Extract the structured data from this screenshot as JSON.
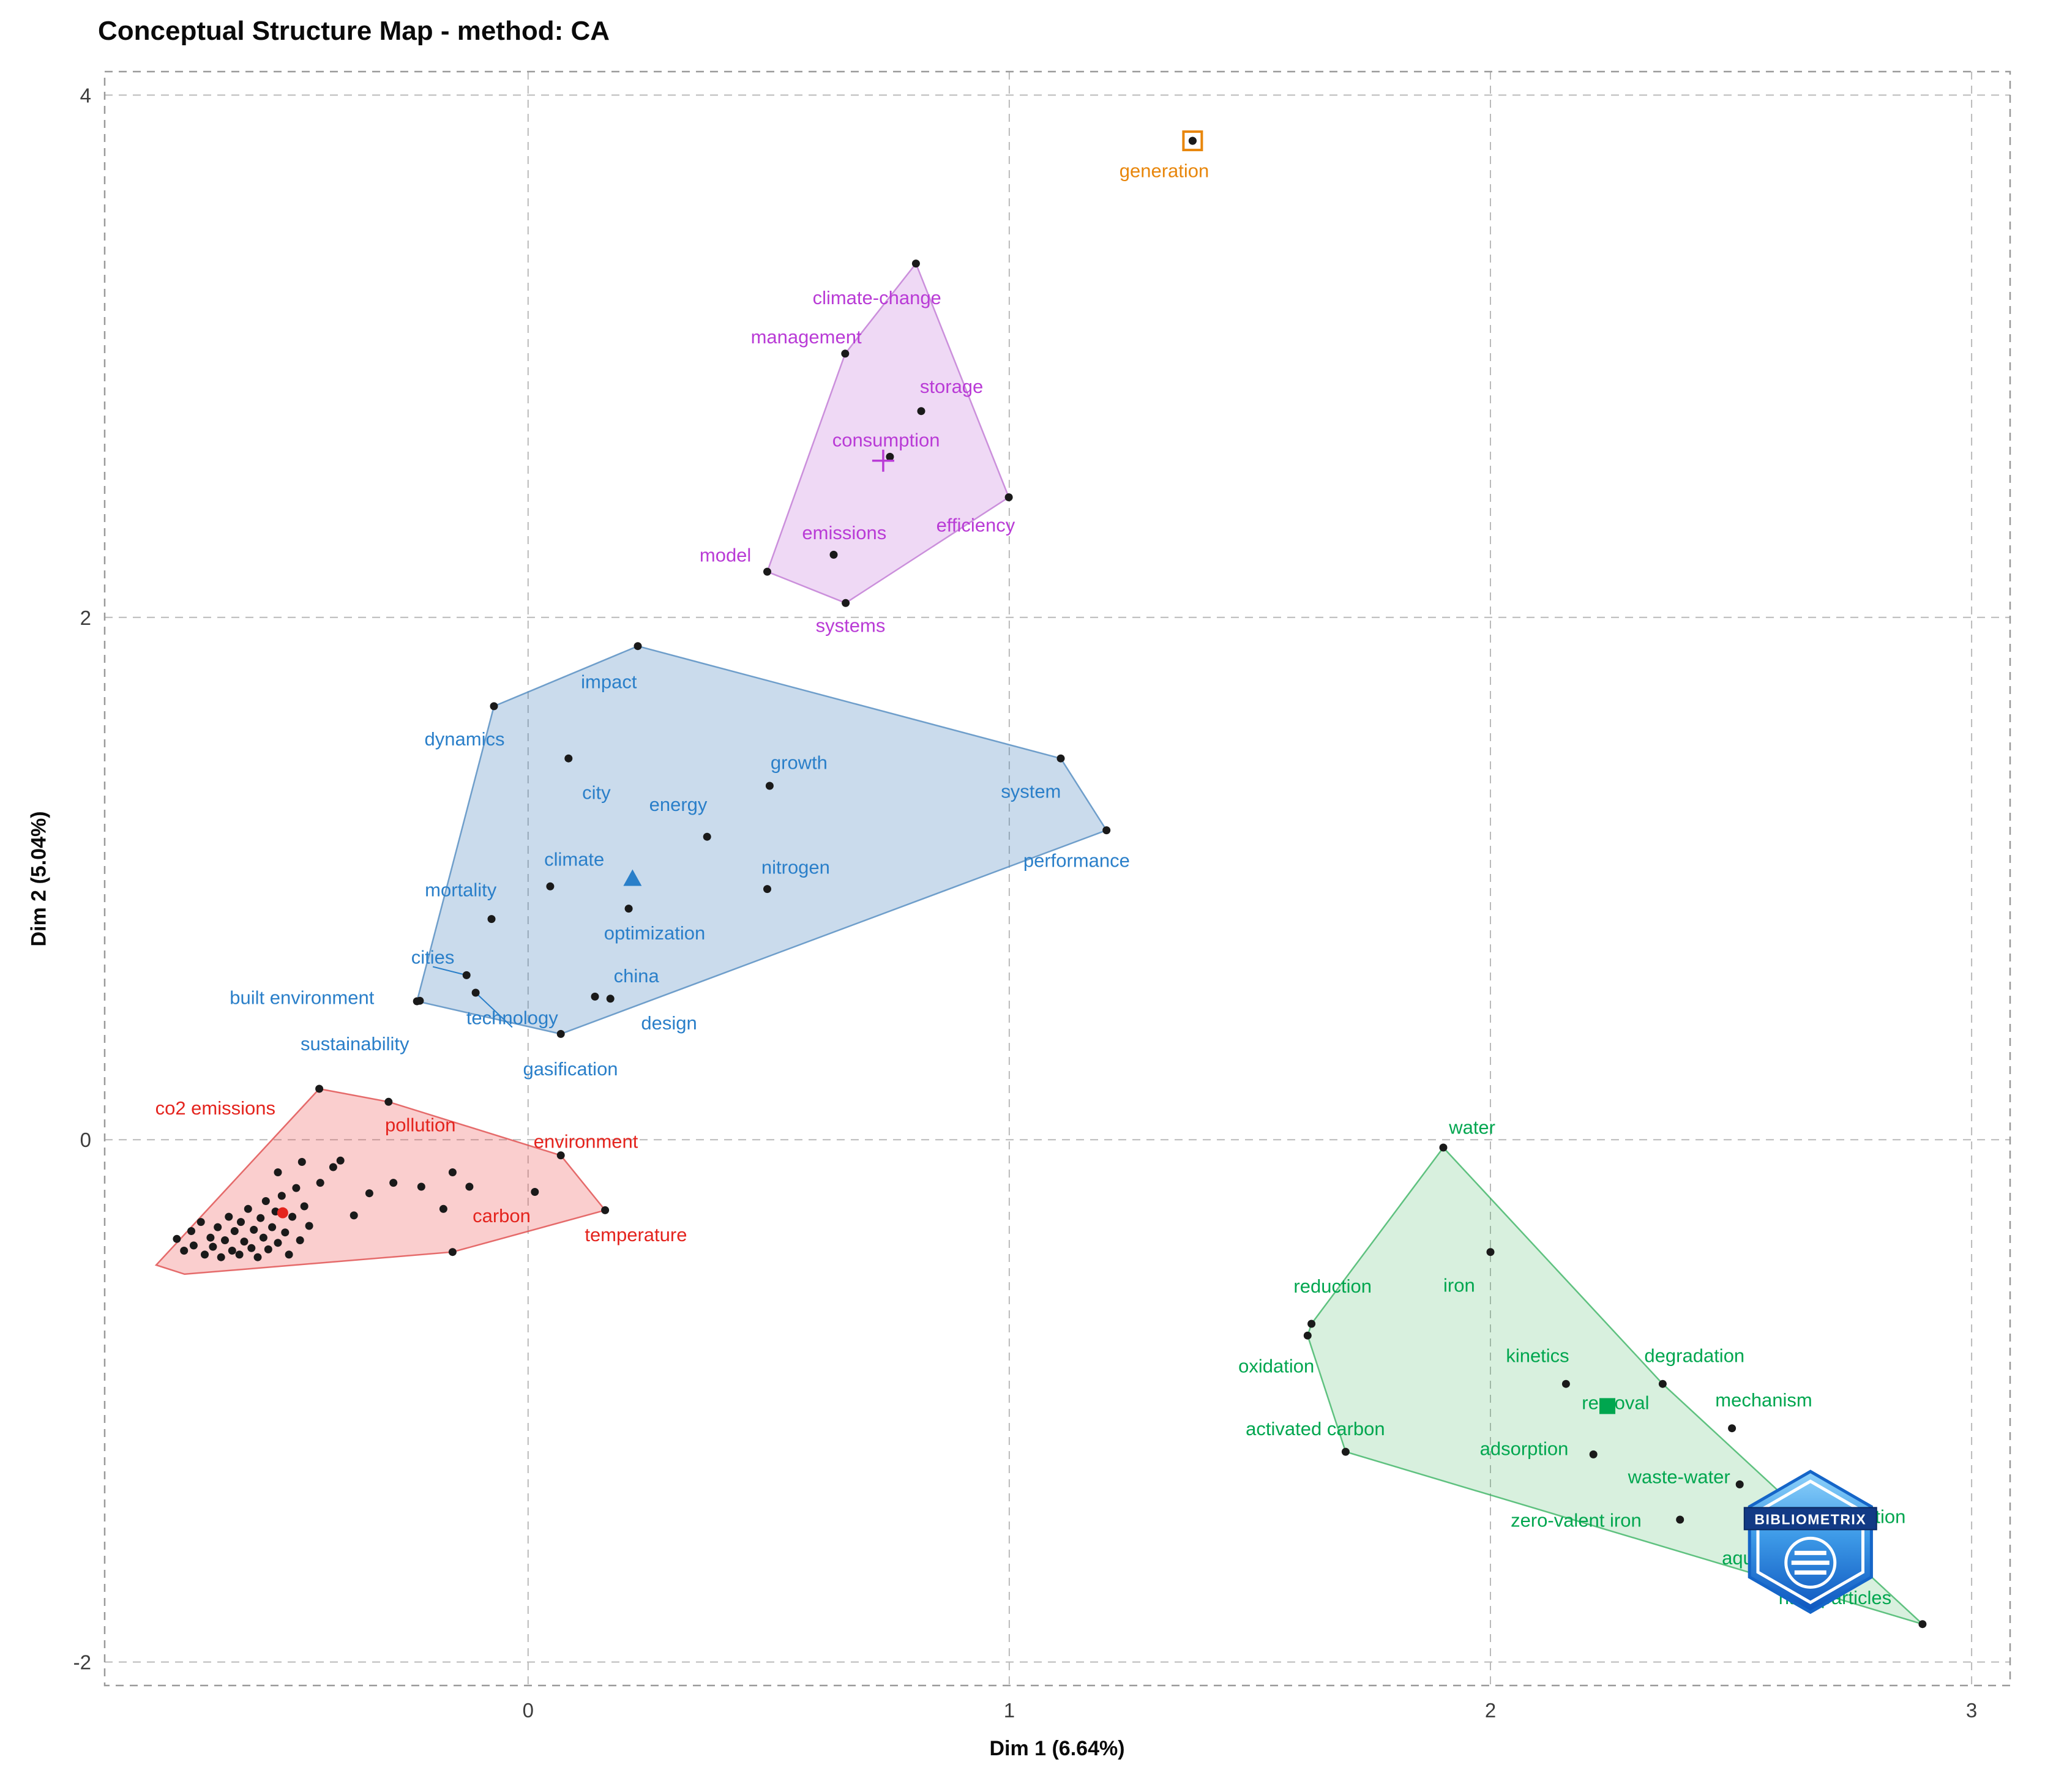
{
  "chart_data": {
    "type": "scatter",
    "title": "Conceptual Structure Map - method: CA",
    "xlabel": "Dim 1 (6.64%)",
    "ylabel": "Dim 2 (5.04%)",
    "xlim": [
      -0.88,
      3.08
    ],
    "ylim": [
      -2.09,
      4.09
    ],
    "x_ticks": [
      0,
      1,
      2,
      3
    ],
    "y_ticks": [
      -2,
      0,
      2,
      4
    ],
    "grid": "dashed",
    "point_color": "#1a1a1a",
    "watermark_text": "BIBLIOMETRIX",
    "clusters": [
      {
        "name": "orange",
        "label_color": "#E8860B",
        "hull_fill": "none",
        "hull_stroke": "none",
        "marker": "square-dot",
        "centroid": [
          1.381,
          3.825
        ],
        "hull": [],
        "terms": [
          {
            "label": "generation",
            "x": 1.381,
            "y": 3.825,
            "lx": 1.322,
            "ly": 3.712
          }
        ]
      },
      {
        "name": "purple",
        "label_color": "#B93BD6",
        "hull_fill": "rgba(196,120,220,0.28)",
        "hull_stroke": "rgba(195,127,214,0.85)",
        "marker": "plus",
        "centroid": [
          0.738,
          2.6
        ],
        "hull": [
          [
            0.806,
            3.355
          ],
          [
            0.999,
            2.46
          ],
          [
            0.66,
            2.055
          ],
          [
            0.497,
            2.175
          ],
          [
            0.659,
            3.01
          ]
        ],
        "terms": [
          {
            "label": "climate-change",
            "x": 0.806,
            "y": 3.355,
            "lx": 0.725,
            "ly": 3.225
          },
          {
            "label": "management",
            "x": 0.659,
            "y": 3.01,
            "lx": 0.578,
            "ly": 3.075
          },
          {
            "label": "storage",
            "x": 0.817,
            "y": 2.79,
            "lx": 0.88,
            "ly": 2.885
          },
          {
            "label": "consumption",
            "x": 0.752,
            "y": 2.615,
            "lx": 0.744,
            "ly": 2.68
          },
          {
            "label": "efficiency",
            "x": 0.999,
            "y": 2.46,
            "lx": 0.93,
            "ly": 2.355
          },
          {
            "label": "emissions",
            "x": 0.635,
            "y": 2.24,
            "lx": 0.657,
            "ly": 2.325
          },
          {
            "label": "model",
            "x": 0.497,
            "y": 2.175,
            "lx": 0.41,
            "ly": 2.24
          },
          {
            "label": "systems",
            "x": 0.66,
            "y": 2.055,
            "lx": 0.67,
            "ly": 1.97
          }
        ]
      },
      {
        "name": "blue",
        "label_color": "#2A7FC9",
        "hull_fill": "rgba(58,123,183,0.27)",
        "hull_stroke": "rgba(90,145,195,0.85)",
        "marker": "triangle",
        "centroid": [
          0.217,
          1.0
        ],
        "hull": [
          [
            0.228,
            1.89
          ],
          [
            1.107,
            1.46
          ],
          [
            1.202,
            1.185
          ],
          [
            0.068,
            0.405
          ],
          [
            -0.231,
            0.53
          ],
          [
            -0.071,
            1.66
          ]
        ],
        "terms": [
          {
            "label": "impact",
            "x": 0.228,
            "y": 1.89,
            "lx": 0.168,
            "ly": 1.755
          },
          {
            "label": "dynamics",
            "x": -0.071,
            "y": 1.66,
            "lx": -0.132,
            "ly": 1.535
          },
          {
            "label": "city",
            "x": 0.084,
            "y": 1.46,
            "lx": 0.142,
            "ly": 1.33
          },
          {
            "label": "growth",
            "x": 0.502,
            "y": 1.355,
            "lx": 0.563,
            "ly": 1.445
          },
          {
            "label": "energy",
            "x": 0.372,
            "y": 1.16,
            "lx": 0.312,
            "ly": 1.285
          },
          {
            "label": "system",
            "x": 1.107,
            "y": 1.46,
            "lx": 1.045,
            "ly": 1.335
          },
          {
            "label": "performance",
            "x": 1.202,
            "y": 1.185,
            "lx": 1.14,
            "ly": 1.07
          },
          {
            "label": "climate",
            "x": 0.046,
            "y": 0.97,
            "lx": 0.096,
            "ly": 1.075
          },
          {
            "label": "nitrogen",
            "x": 0.497,
            "y": 0.96,
            "lx": 0.556,
            "ly": 1.045
          },
          {
            "label": "mortality",
            "x": -0.076,
            "y": 0.845,
            "lx": -0.14,
            "ly": 0.958
          },
          {
            "label": "optimization",
            "x": 0.209,
            "y": 0.885,
            "lx": 0.263,
            "ly": 0.793
          },
          {
            "label": "cities",
            "x": -0.128,
            "y": 0.63,
            "lx": -0.198,
            "ly": 0.7,
            "leader": true
          },
          {
            "label": "china",
            "x": 0.139,
            "y": 0.548,
            "lx": 0.225,
            "ly": 0.628
          },
          {
            "label": "built environment",
            "x": -0.231,
            "y": 0.53,
            "lx": -0.47,
            "ly": 0.545
          },
          {
            "label": "technology",
            "x": -0.109,
            "y": 0.563,
            "lx": -0.033,
            "ly": 0.468,
            "leader": true
          },
          {
            "label": "design",
            "x": 0.171,
            "y": 0.54,
            "lx": 0.293,
            "ly": 0.448
          },
          {
            "label": "sustainability",
            "x": -0.225,
            "y": 0.532,
            "lx": -0.36,
            "ly": 0.368
          },
          {
            "label": "gasification",
            "x": 0.068,
            "y": 0.405,
            "lx": 0.088,
            "ly": 0.272
          }
        ]
      },
      {
        "name": "red",
        "label_color": "#E4241E",
        "hull_fill": "rgba(238,80,80,0.28)",
        "hull_stroke": "rgba(225,85,85,0.85)",
        "marker": "circle",
        "centroid": [
          -0.51,
          -0.28
        ],
        "hull": [
          [
            -0.434,
            0.195
          ],
          [
            -0.29,
            0.145
          ],
          [
            0.068,
            -0.06
          ],
          [
            0.16,
            -0.27
          ],
          [
            -0.157,
            -0.43
          ],
          [
            -0.714,
            -0.515
          ],
          [
            -0.773,
            -0.48
          ]
        ],
        "terms": [
          {
            "label": "co2 emissions",
            "x": -0.434,
            "y": 0.195,
            "lx": -0.65,
            "ly": 0.122
          },
          {
            "label": "pollution",
            "x": -0.29,
            "y": 0.145,
            "lx": -0.224,
            "ly": 0.058
          },
          {
            "label": "environment",
            "x": 0.068,
            "y": -0.06,
            "lx": 0.12,
            "ly": -0.005
          },
          {
            "label": "carbon",
            "x": 0.014,
            "y": -0.2,
            "lx": -0.055,
            "ly": -0.29
          },
          {
            "label": "temperature",
            "x": 0.16,
            "y": -0.27,
            "lx": 0.224,
            "ly": -0.363
          }
        ],
        "extra_points": [
          [
            -0.73,
            -0.38
          ],
          [
            -0.715,
            -0.425
          ],
          [
            -0.7,
            -0.35
          ],
          [
            -0.695,
            -0.405
          ],
          [
            -0.68,
            -0.315
          ],
          [
            -0.672,
            -0.44
          ],
          [
            -0.66,
            -0.375
          ],
          [
            -0.655,
            -0.41
          ],
          [
            -0.645,
            -0.335
          ],
          [
            -0.638,
            -0.45
          ],
          [
            -0.63,
            -0.385
          ],
          [
            -0.622,
            -0.295
          ],
          [
            -0.615,
            -0.425
          ],
          [
            -0.61,
            -0.35
          ],
          [
            -0.6,
            -0.44
          ],
          [
            -0.597,
            -0.315
          ],
          [
            -0.59,
            -0.39
          ],
          [
            -0.582,
            -0.265
          ],
          [
            -0.575,
            -0.415
          ],
          [
            -0.57,
            -0.345
          ],
          [
            -0.562,
            -0.45
          ],
          [
            -0.556,
            -0.3
          ],
          [
            -0.55,
            -0.375
          ],
          [
            -0.545,
            -0.235
          ],
          [
            -0.54,
            -0.42
          ],
          [
            -0.532,
            -0.335
          ],
          [
            -0.525,
            -0.275
          ],
          [
            -0.52,
            -0.395
          ],
          [
            -0.512,
            -0.215
          ],
          [
            -0.505,
            -0.355
          ],
          [
            -0.497,
            -0.44
          ],
          [
            -0.49,
            -0.295
          ],
          [
            -0.482,
            -0.185
          ],
          [
            -0.474,
            -0.385
          ],
          [
            -0.465,
            -0.255
          ],
          [
            -0.455,
            -0.33
          ],
          [
            -0.52,
            -0.125
          ],
          [
            -0.47,
            -0.085
          ],
          [
            -0.432,
            -0.165
          ],
          [
            -0.405,
            -0.105
          ],
          [
            -0.39,
            -0.08
          ],
          [
            -0.362,
            -0.29
          ],
          [
            -0.33,
            -0.205
          ],
          [
            -0.28,
            -0.165
          ],
          [
            -0.222,
            -0.18
          ],
          [
            -0.176,
            -0.265
          ],
          [
            -0.157,
            -0.125
          ],
          [
            -0.122,
            -0.18
          ],
          [
            -0.157,
            -0.43
          ]
        ]
      },
      {
        "name": "green",
        "label_color": "#00A64F",
        "hull_fill": "rgba(60,180,90,0.20)",
        "hull_stroke": "rgba(60,180,100,0.8)",
        "marker": "square",
        "centroid": [
          2.243,
          -1.02
        ],
        "hull": [
          [
            1.902,
            -0.03
          ],
          [
            2.358,
            -0.935
          ],
          [
            2.898,
            -1.855
          ],
          [
            1.699,
            -1.195
          ],
          [
            1.62,
            -0.75
          ],
          [
            1.628,
            -0.705
          ]
        ],
        "terms": [
          {
            "label": "water",
            "x": 1.902,
            "y": -0.03,
            "lx": 1.962,
            "ly": 0.048
          },
          {
            "label": "reduction",
            "x": 1.628,
            "y": -0.705,
            "lx": 1.672,
            "ly": -0.56
          },
          {
            "label": "iron",
            "x": 2.0,
            "y": -0.43,
            "lx": 1.935,
            "ly": -0.556
          },
          {
            "label": "oxidation",
            "x": 1.62,
            "y": -0.75,
            "lx": 1.555,
            "ly": -0.866
          },
          {
            "label": "kinetics",
            "x": 2.157,
            "y": -0.935,
            "lx": 2.098,
            "ly": -0.826
          },
          {
            "label": "degradation",
            "x": 2.358,
            "y": -0.935,
            "lx": 2.424,
            "ly": -0.826
          },
          {
            "label": "removal",
            "x": 2.246,
            "y": -1.03,
            "lx": 2.26,
            "ly": -1.006
          },
          {
            "label": "mechanism",
            "x": 2.502,
            "y": -1.105,
            "lx": 2.568,
            "ly": -0.996
          },
          {
            "label": "activated carbon",
            "x": 1.699,
            "y": -1.195,
            "lx": 1.636,
            "ly": -1.106
          },
          {
            "label": "adsorption",
            "x": 2.214,
            "y": -1.205,
            "lx": 2.07,
            "ly": -1.182
          },
          {
            "label": "waste-water",
            "x": 2.518,
            "y": -1.32,
            "lx": 2.392,
            "ly": -1.29
          },
          {
            "label": "zero-valent iron",
            "x": 2.394,
            "y": -1.455,
            "lx": 2.178,
            "ly": -1.456
          },
          {
            "label": "remediation",
            "x": 2.665,
            "y": -1.335,
            "lx": 2.76,
            "ly": -1.442
          },
          {
            "label": "aqueous solution",
            "x": 2.556,
            "y": -1.565,
            "lx": 2.63,
            "ly": -1.6
          },
          {
            "label": "nanoparticles",
            "x": 2.898,
            "y": -1.855,
            "lx": 2.716,
            "ly": -1.752
          }
        ]
      }
    ]
  }
}
